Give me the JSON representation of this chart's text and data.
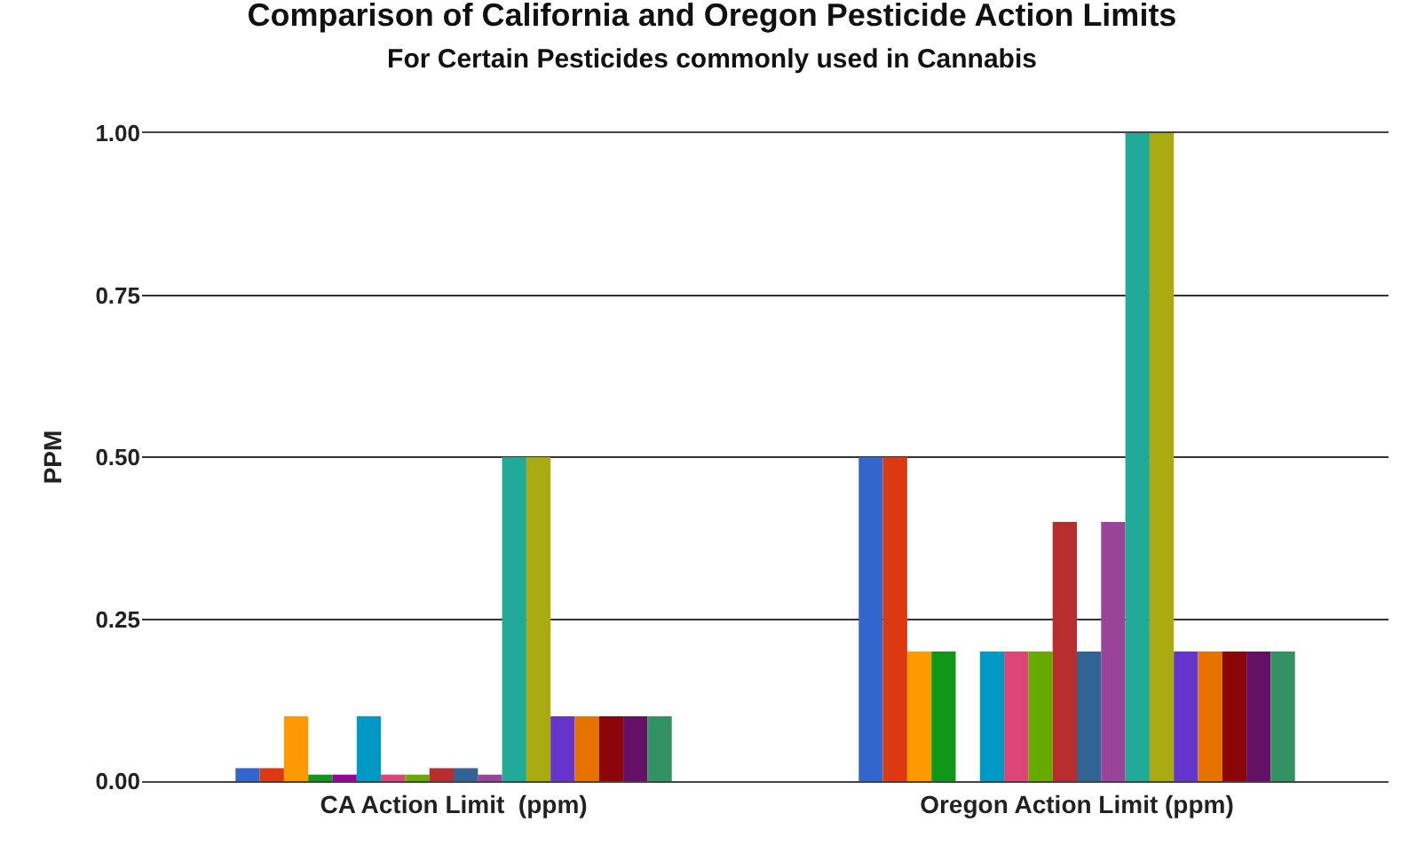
{
  "chart_data": {
    "type": "bar",
    "title": "Comparison of California and Oregon Pesticide Action Limits",
    "subtitle": "For Certain Pesticides commonly used in Cannabis",
    "ylabel": "PPM",
    "categories": [
      "CA Action Limit  (ppm)",
      "Oregon Action Limit (ppm)"
    ],
    "series": [
      {
        "color": "#3366cc",
        "values": [
          0.02,
          0.5
        ]
      },
      {
        "color": "#dc3912",
        "values": [
          0.02,
          0.5
        ]
      },
      {
        "color": "#ff9900",
        "values": [
          0.1,
          0.2
        ]
      },
      {
        "color": "#109618",
        "values": [
          0.01,
          0.2
        ]
      },
      {
        "color": "#990099",
        "values": [
          0.01,
          null
        ]
      },
      {
        "color": "#0099c6",
        "values": [
          0.1,
          0.2
        ]
      },
      {
        "color": "#dd4477",
        "values": [
          0.01,
          0.2
        ]
      },
      {
        "color": "#66aa00",
        "values": [
          0.01,
          0.2
        ]
      },
      {
        "color": "#b82e2e",
        "values": [
          0.02,
          0.4
        ]
      },
      {
        "color": "#316395",
        "values": [
          0.02,
          0.2
        ]
      },
      {
        "color": "#994499",
        "values": [
          0.01,
          0.4
        ]
      },
      {
        "color": "#22aa99",
        "values": [
          0.5,
          1.0
        ]
      },
      {
        "color": "#aaaa11",
        "values": [
          0.5,
          1.0
        ]
      },
      {
        "color": "#6633cc",
        "values": [
          0.1,
          0.2
        ]
      },
      {
        "color": "#e67300",
        "values": [
          0.1,
          0.2
        ]
      },
      {
        "color": "#8b0707",
        "values": [
          0.1,
          0.2
        ]
      },
      {
        "color": "#651067",
        "values": [
          0.1,
          0.2
        ]
      },
      {
        "color": "#329262",
        "values": [
          0.1,
          0.2
        ]
      }
    ],
    "ylim": [
      0,
      1.0
    ],
    "yticks": [
      {
        "value": 0,
        "label": "0.00"
      },
      {
        "value": 0.25,
        "label": "0.25"
      },
      {
        "value": 0.5,
        "label": "0.50"
      },
      {
        "value": 0.75,
        "label": "0.75"
      },
      {
        "value": 1.0,
        "label": "1.00"
      }
    ],
    "grid": "y"
  }
}
